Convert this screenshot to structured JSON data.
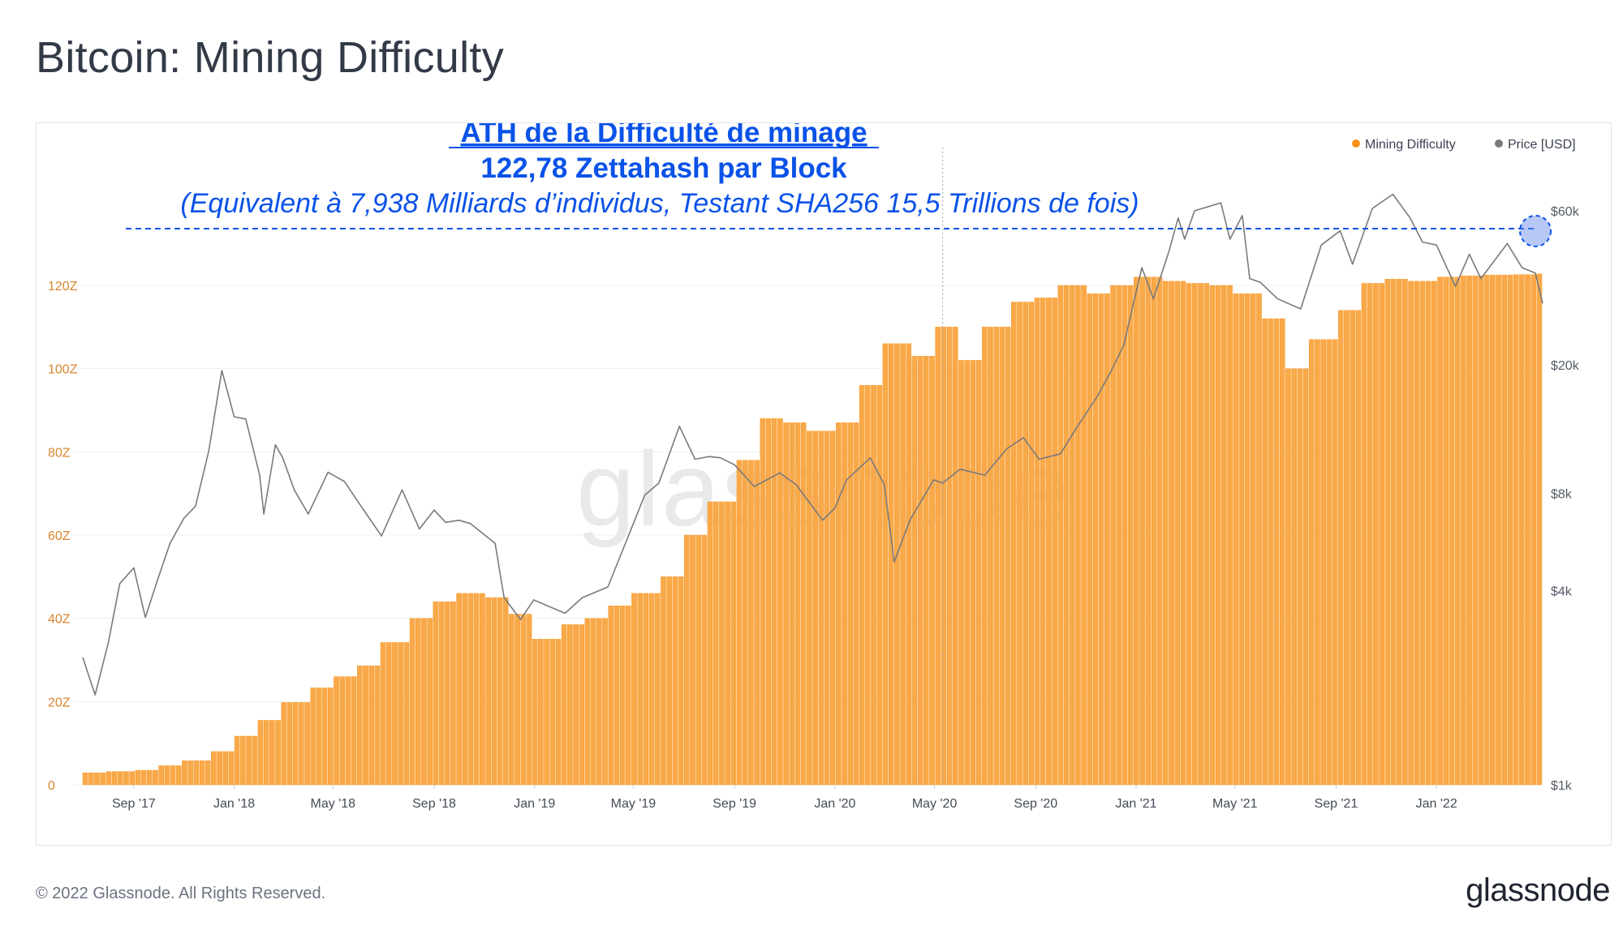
{
  "page": {
    "title": "Bitcoin: Mining Difficulty",
    "copyright": "© 2022 Glassnode. All Rights Reserved.",
    "brand_logo": "glassnode",
    "watermark": "glassnode"
  },
  "annotation": {
    "line1": "ATH de la Difficulté de minage",
    "line2": "122,78 Zettahash par Block",
    "line3": "(Equivalent à 7,938 Milliards d’individus, Testant SHA256 15,5 Trillions de fois)"
  },
  "colors": {
    "difficulty": "#f7931a",
    "difficulty_fill": "#f9a94a",
    "price": "#7a7a7a",
    "annotation": "#0a52e8",
    "axis_left": "#d9862e",
    "grid": "#eef0f3",
    "axis_right": "#555b66",
    "xaxis": "#444b55"
  },
  "chart_data": {
    "type": "bar",
    "legend": [
      {
        "name": "Mining Difficulty",
        "color": "#f7931a"
      },
      {
        "name": "Price [USD]",
        "color": "#7a7a7a"
      }
    ],
    "legend_position": "top-right",
    "grid": true,
    "y_left": {
      "ticks": [
        "0",
        "20Z",
        "40Z",
        "60Z",
        "80Z",
        "100Z",
        "120Z"
      ],
      "range": [
        0,
        120
      ],
      "unit": "Z"
    },
    "y_right": {
      "ticks": [
        "$1k",
        "$4k",
        "$8k",
        "$20k",
        "$60k"
      ],
      "scale": "log",
      "range": [
        1000,
        60000
      ]
    },
    "x_ticks": [
      "Sep '17",
      "Jan '18",
      "May '18",
      "Sep '18",
      "Jan '19",
      "May '19",
      "Sep '19",
      "Jan '20",
      "May '20",
      "Sep '20",
      "Jan '21",
      "May '21",
      "Sep '21",
      "Jan '22"
    ],
    "x_start": "2017-07-01",
    "x_end": "2022-05-10",
    "ath_reference": 122.78,
    "vertical_marker": "2020-05-11",
    "series": [
      {
        "name": "Mining Difficulty",
        "type": "bar",
        "points": [
          [
            "2017-07-01",
            2.9
          ],
          [
            "2017-08-01",
            3.2
          ],
          [
            "2017-09-01",
            3.5
          ],
          [
            "2017-10-01",
            4.6
          ],
          [
            "2017-11-01",
            5.8
          ],
          [
            "2017-12-01",
            8.0
          ],
          [
            "2018-01-01",
            11.7
          ],
          [
            "2018-02-01",
            15.5
          ],
          [
            "2018-03-01",
            19.8
          ],
          [
            "2018-04-01",
            23.3
          ],
          [
            "2018-05-01",
            26.0
          ],
          [
            "2018-06-01",
            28.6
          ],
          [
            "2018-07-01",
            34.2
          ],
          [
            "2018-08-01",
            40.0
          ],
          [
            "2018-09-01",
            44.0
          ],
          [
            "2018-10-01",
            46.0
          ],
          [
            "2018-11-01",
            45.0
          ],
          [
            "2018-12-01",
            41.0
          ],
          [
            "2019-01-01",
            35.0
          ],
          [
            "2019-02-01",
            38.5
          ],
          [
            "2019-03-01",
            40.0
          ],
          [
            "2019-04-01",
            43.0
          ],
          [
            "2019-05-01",
            46.0
          ],
          [
            "2019-06-01",
            50.0
          ],
          [
            "2019-07-01",
            60.0
          ],
          [
            "2019-08-01",
            68.0
          ],
          [
            "2019-09-01",
            78.0
          ],
          [
            "2019-10-01",
            88.0
          ],
          [
            "2019-11-01",
            87.0
          ],
          [
            "2019-12-01",
            85.0
          ],
          [
            "2020-01-01",
            87.0
          ],
          [
            "2020-02-01",
            96.0
          ],
          [
            "2020-03-01",
            106.0
          ],
          [
            "2020-04-01",
            103.0
          ],
          [
            "2020-05-01",
            110.0
          ],
          [
            "2020-06-01",
            102.0
          ],
          [
            "2020-07-01",
            110.0
          ],
          [
            "2020-08-01",
            116.0
          ],
          [
            "2020-09-01",
            117.0
          ],
          [
            "2020-10-01",
            120.0
          ],
          [
            "2020-11-01",
            118.0
          ],
          [
            "2020-12-01",
            120.0
          ],
          [
            "2021-01-01",
            122.0
          ],
          [
            "2021-02-01",
            121.0
          ],
          [
            "2021-03-01",
            120.5
          ],
          [
            "2021-04-01",
            120.0
          ],
          [
            "2021-05-01",
            118.0
          ],
          [
            "2021-06-01",
            112.0
          ],
          [
            "2021-07-01",
            100.0
          ],
          [
            "2021-08-01",
            107.0
          ],
          [
            "2021-09-01",
            114.0
          ],
          [
            "2021-10-01",
            120.5
          ],
          [
            "2021-11-01",
            121.5
          ],
          [
            "2021-12-01",
            121.0
          ],
          [
            "2022-01-01",
            122.0
          ],
          [
            "2022-02-01",
            122.3
          ],
          [
            "2022-03-01",
            122.5
          ],
          [
            "2022-04-01",
            122.6
          ],
          [
            "2022-05-01",
            122.78
          ]
        ]
      },
      {
        "name": "Price [USD]",
        "type": "line",
        "points": [
          [
            "2017-07-01",
            2480
          ],
          [
            "2017-07-16",
            1900
          ],
          [
            "2017-08-01",
            2750
          ],
          [
            "2017-08-15",
            4200
          ],
          [
            "2017-09-01",
            4700
          ],
          [
            "2017-09-15",
            3300
          ],
          [
            "2017-10-01",
            4400
          ],
          [
            "2017-10-15",
            5600
          ],
          [
            "2017-11-01",
            6700
          ],
          [
            "2017-11-15",
            7300
          ],
          [
            "2017-12-01",
            10800
          ],
          [
            "2017-12-17",
            19200
          ],
          [
            "2018-01-01",
            13800
          ],
          [
            "2018-01-15",
            13600
          ],
          [
            "2018-02-01",
            9100
          ],
          [
            "2018-02-06",
            6900
          ],
          [
            "2018-02-20",
            11300
          ],
          [
            "2018-03-01",
            10300
          ],
          [
            "2018-03-15",
            8200
          ],
          [
            "2018-04-01",
            6900
          ],
          [
            "2018-04-25",
            9300
          ],
          [
            "2018-05-15",
            8700
          ],
          [
            "2018-06-01",
            7500
          ],
          [
            "2018-06-29",
            5900
          ],
          [
            "2018-07-24",
            8200
          ],
          [
            "2018-08-14",
            6200
          ],
          [
            "2018-09-01",
            7100
          ],
          [
            "2018-09-15",
            6500
          ],
          [
            "2018-10-01",
            6600
          ],
          [
            "2018-10-15",
            6450
          ],
          [
            "2018-11-14",
            5600
          ],
          [
            "2018-11-25",
            3800
          ],
          [
            "2018-12-15",
            3250
          ],
          [
            "2018-12-31",
            3740
          ],
          [
            "2019-01-15",
            3600
          ],
          [
            "2019-02-07",
            3400
          ],
          [
            "2019-02-28",
            3800
          ],
          [
            "2019-03-31",
            4100
          ],
          [
            "2019-04-15",
            5100
          ],
          [
            "2019-05-15",
            7900
          ],
          [
            "2019-06-01",
            8600
          ],
          [
            "2019-06-26",
            12900
          ],
          [
            "2019-07-15",
            10200
          ],
          [
            "2019-08-01",
            10400
          ],
          [
            "2019-08-15",
            10300
          ],
          [
            "2019-09-01",
            9800
          ],
          [
            "2019-09-25",
            8400
          ],
          [
            "2019-10-26",
            9250
          ],
          [
            "2019-11-15",
            8500
          ],
          [
            "2019-12-17",
            6600
          ],
          [
            "2020-01-01",
            7200
          ],
          [
            "2020-01-15",
            8800
          ],
          [
            "2020-02-13",
            10300
          ],
          [
            "2020-03-01",
            8500
          ],
          [
            "2020-03-13",
            4900
          ],
          [
            "2020-04-01",
            6600
          ],
          [
            "2020-04-30",
            8800
          ],
          [
            "2020-05-11",
            8600
          ],
          [
            "2020-06-01",
            9500
          ],
          [
            "2020-07-01",
            9100
          ],
          [
            "2020-07-28",
            11000
          ],
          [
            "2020-08-17",
            11900
          ],
          [
            "2020-09-05",
            10200
          ],
          [
            "2020-10-01",
            10600
          ],
          [
            "2020-10-21",
            12800
          ],
          [
            "2020-11-15",
            16000
          ],
          [
            "2020-12-01",
            19000
          ],
          [
            "2020-12-17",
            23000
          ],
          [
            "2021-01-08",
            40000
          ],
          [
            "2021-01-22",
            32000
          ],
          [
            "2021-02-10",
            45000
          ],
          [
            "2021-02-21",
            57000
          ],
          [
            "2021-03-01",
            49000
          ],
          [
            "2021-03-13",
            60000
          ],
          [
            "2021-04-14",
            63500
          ],
          [
            "2021-04-25",
            49000
          ],
          [
            "2021-05-10",
            58000
          ],
          [
            "2021-05-19",
            37000
          ],
          [
            "2021-06-01",
            36000
          ],
          [
            "2021-06-22",
            32000
          ],
          [
            "2021-07-20",
            29800
          ],
          [
            "2021-08-14",
            47000
          ],
          [
            "2021-09-06",
            52000
          ],
          [
            "2021-09-21",
            41000
          ],
          [
            "2021-10-15",
            61000
          ],
          [
            "2021-11-09",
            67500
          ],
          [
            "2021-11-30",
            57000
          ],
          [
            "2021-12-15",
            48000
          ],
          [
            "2022-01-01",
            47000
          ],
          [
            "2022-01-24",
            35000
          ],
          [
            "2022-02-10",
            44000
          ],
          [
            "2022-02-24",
            37000
          ],
          [
            "2022-03-28",
            47500
          ],
          [
            "2022-04-15",
            40000
          ],
          [
            "2022-05-01",
            38500
          ],
          [
            "2022-05-10",
            31000
          ]
        ]
      }
    ]
  }
}
